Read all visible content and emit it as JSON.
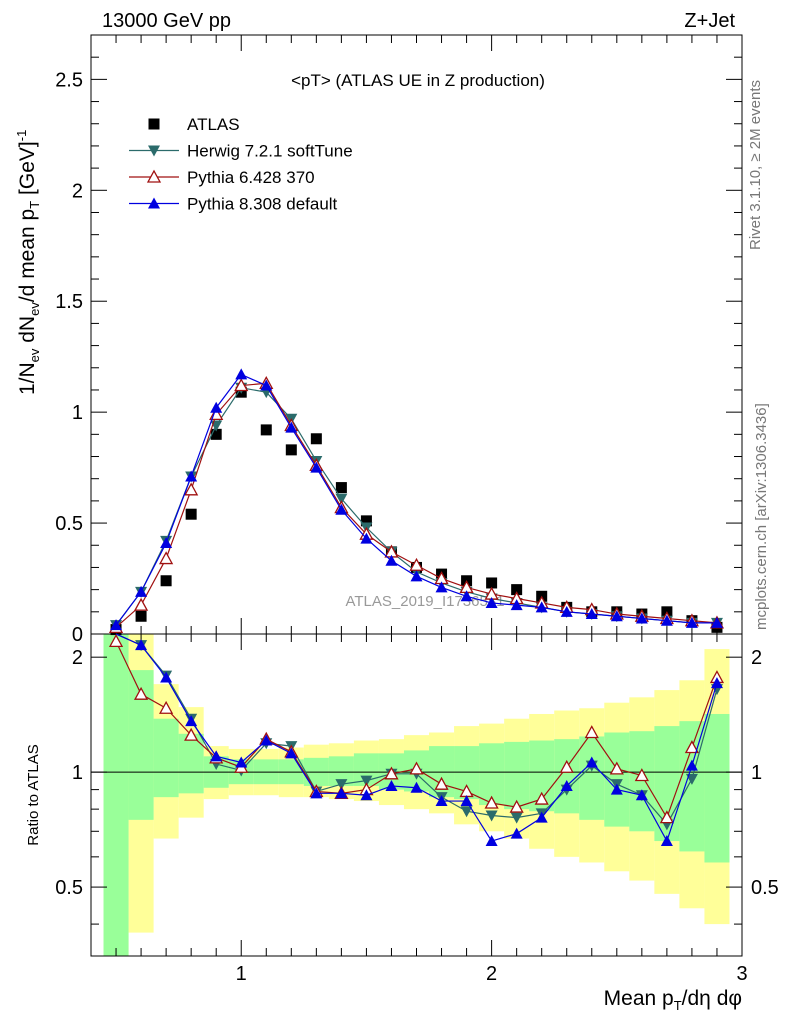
{
  "header": {
    "left": "13000 GeV pp",
    "right": "Z+Jet"
  },
  "side_labels": {
    "rivet": "Rivet 3.1.10, ≥ 2M events",
    "mcplots": "mcplots.cern.ch [arXiv:1306.3436]"
  },
  "watermark": "ATLAS_2019_I1736531",
  "chart_data": {
    "type": "line",
    "title": "<pT> (ATLAS UE in Z production)",
    "xlabel": "Mean p_T/dη dφ",
    "ylabel": "1/N_ev dN_ev/d mean p_T [GeV]^-1",
    "ratio_ylabel": "Ratio to ATLAS",
    "xlim": [
      0.4,
      3.0
    ],
    "ylim": [
      0,
      2.7
    ],
    "ratio_ylim": [
      0.33,
      2.3
    ],
    "x_ticks": [
      "1",
      "2",
      "3"
    ],
    "y_ticks": [
      "0",
      "0.5",
      "1",
      "1.5",
      "2",
      "2.5"
    ],
    "ratio_y_ticks": [
      "0.5",
      "1",
      "2"
    ],
    "grid": false,
    "legend_position": "top-left",
    "x": [
      0.5,
      0.6,
      0.7,
      0.8,
      0.9,
      1.0,
      1.1,
      1.2,
      1.3,
      1.4,
      1.5,
      1.6,
      1.7,
      1.8,
      1.9,
      2.0,
      2.1,
      2.2,
      2.3,
      2.4,
      2.5,
      2.6,
      2.7,
      2.8,
      2.9
    ],
    "series": [
      {
        "name": "ATLAS",
        "color": "#000000",
        "marker": "square",
        "values": [
          0.02,
          0.08,
          0.24,
          0.54,
          0.9,
          1.09,
          0.92,
          0.83,
          0.88,
          0.66,
          0.51,
          0.37,
          0.3,
          0.27,
          0.24,
          0.23,
          0.2,
          0.17,
          0.12,
          0.1,
          0.1,
          0.09,
          0.1,
          0.06,
          0.03
        ]
      },
      {
        "name": "Herwig 7.2.1 softTune",
        "color": "#2b6b6b",
        "marker": "triangle-down",
        "values": [
          0.04,
          0.19,
          0.42,
          0.71,
          0.94,
          1.11,
          1.09,
          0.97,
          0.78,
          0.61,
          0.48,
          0.37,
          0.28,
          0.23,
          0.19,
          0.16,
          0.14,
          0.12,
          0.1,
          0.09,
          0.08,
          0.07,
          0.06,
          0.05,
          0.05
        ]
      },
      {
        "name": "Pythia 6.428 370",
        "color": "#a01010",
        "marker": "triangle-up-open",
        "values": [
          0.03,
          0.13,
          0.34,
          0.65,
          0.99,
          1.12,
          1.13,
          0.94,
          0.76,
          0.57,
          0.45,
          0.37,
          0.31,
          0.25,
          0.21,
          0.18,
          0.16,
          0.14,
          0.12,
          0.11,
          0.09,
          0.08,
          0.07,
          0.06,
          0.05
        ]
      },
      {
        "name": "Pythia 8.308 default",
        "color": "#0000e0",
        "marker": "triangle-up",
        "values": [
          0.04,
          0.19,
          0.41,
          0.71,
          1.02,
          1.17,
          1.12,
          0.93,
          0.75,
          0.56,
          0.43,
          0.33,
          0.26,
          0.21,
          0.17,
          0.14,
          0.13,
          0.12,
          0.1,
          0.09,
          0.08,
          0.07,
          0.06,
          0.05,
          0.05
        ]
      }
    ],
    "ratio_series": [
      {
        "name": "Herwig 7.2.1 softTune",
        "values": [
          2.4,
          2.15,
          1.79,
          1.38,
          1.05,
          1.01,
          1.19,
          1.17,
          0.89,
          0.93,
          0.95,
          0.99,
          0.99,
          0.86,
          0.79,
          0.77,
          0.76,
          0.78,
          0.9,
          1.04,
          0.93,
          0.87,
          0.73,
          0.96,
          1.65
        ]
      },
      {
        "name": "Pythia 6.428 370",
        "values": [
          2.2,
          1.6,
          1.47,
          1.25,
          1.09,
          1.03,
          1.22,
          1.13,
          0.89,
          0.88,
          0.9,
          0.99,
          1.02,
          0.93,
          0.89,
          0.83,
          0.81,
          0.85,
          1.03,
          1.27,
          1.02,
          0.98,
          0.76,
          1.16,
          1.77
        ]
      },
      {
        "name": "Pythia 8.308 default",
        "values": [
          2.4,
          2.15,
          1.77,
          1.36,
          1.1,
          1.06,
          1.21,
          1.12,
          0.88,
          0.88,
          0.87,
          0.92,
          0.91,
          0.84,
          0.84,
          0.66,
          0.69,
          0.76,
          0.92,
          1.06,
          0.9,
          0.87,
          0.66,
          1.04,
          1.71
        ]
      }
    ],
    "ratio_band_edges": [
      0.45,
      0.55,
      0.65,
      0.75,
      0.85,
      0.95,
      1.05,
      1.15,
      1.25,
      1.35,
      1.45,
      1.55,
      1.65,
      1.75,
      1.85,
      1.95,
      2.05,
      2.15,
      2.25,
      2.35,
      2.45,
      2.55,
      2.65,
      2.75,
      2.85,
      2.95
    ],
    "ratio_band_green": [
      [
        0.33,
        2.3
      ],
      [
        0.75,
        1.85
      ],
      [
        0.86,
        1.38
      ],
      [
        0.88,
        1.26
      ],
      [
        0.91,
        1.1
      ],
      [
        0.93,
        1.08
      ],
      [
        0.93,
        1.08
      ],
      [
        0.93,
        1.08
      ],
      [
        0.92,
        1.09
      ],
      [
        0.92,
        1.1
      ],
      [
        0.92,
        1.12
      ],
      [
        0.9,
        1.12
      ],
      [
        0.89,
        1.14
      ],
      [
        0.86,
        1.17
      ],
      [
        0.85,
        1.17
      ],
      [
        0.82,
        1.19
      ],
      [
        0.8,
        1.2
      ],
      [
        0.79,
        1.21
      ],
      [
        0.78,
        1.22
      ],
      [
        0.75,
        1.24
      ],
      [
        0.72,
        1.27
      ],
      [
        0.7,
        1.28
      ],
      [
        0.66,
        1.32
      ],
      [
        0.62,
        1.36
      ],
      [
        0.58,
        1.42
      ]
    ],
    "ratio_band_yellow": [
      [
        0.33,
        2.3
      ],
      [
        0.38,
        2.3
      ],
      [
        0.67,
        1.7
      ],
      [
        0.76,
        1.48
      ],
      [
        0.85,
        1.17
      ],
      [
        0.87,
        1.15
      ],
      [
        0.87,
        1.15
      ],
      [
        0.86,
        1.16
      ],
      [
        0.86,
        1.18
      ],
      [
        0.85,
        1.19
      ],
      [
        0.84,
        1.21
      ],
      [
        0.82,
        1.22
      ],
      [
        0.8,
        1.25
      ],
      [
        0.78,
        1.27
      ],
      [
        0.73,
        1.32
      ],
      [
        0.7,
        1.34
      ],
      [
        0.67,
        1.38
      ],
      [
        0.63,
        1.42
      ],
      [
        0.6,
        1.45
      ],
      [
        0.58,
        1.47
      ],
      [
        0.55,
        1.52
      ],
      [
        0.52,
        1.57
      ],
      [
        0.48,
        1.64
      ],
      [
        0.44,
        1.74
      ],
      [
        0.4,
        2.1
      ]
    ]
  }
}
